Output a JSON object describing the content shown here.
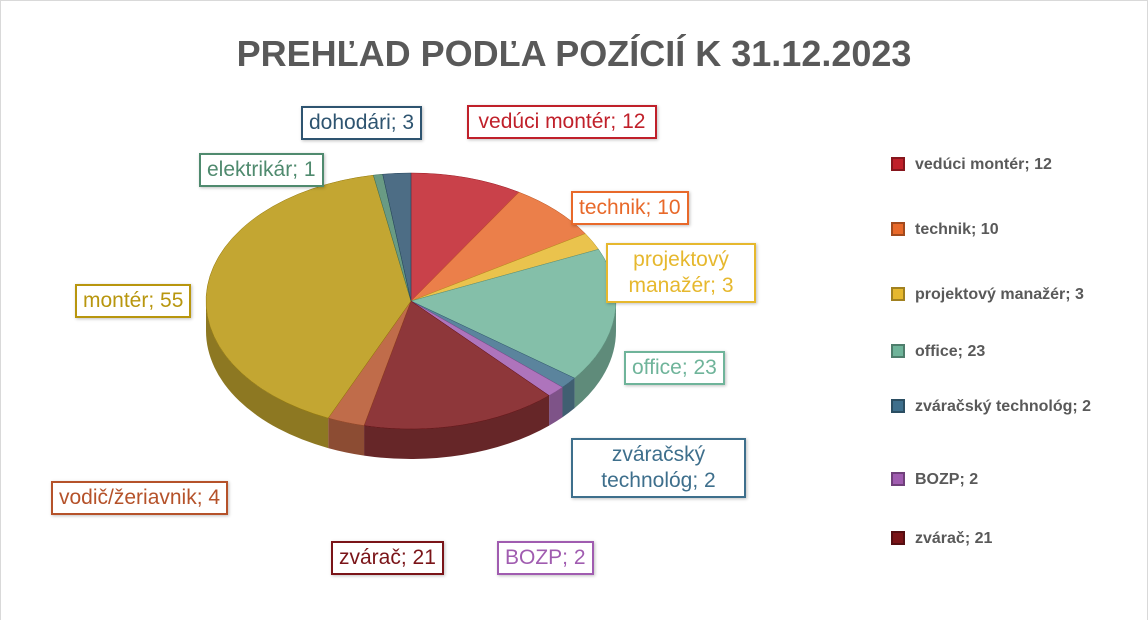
{
  "chart_data": {
    "type": "pie",
    "title": "PREHĽAD PODĽA POZÍCIÍ K 31.12.2023",
    "categories": [
      "vedúci montér; 12",
      "technik; 10",
      "projektový manažér; 3",
      "office; 23",
      "zváračský technológ; 2",
      "BOZP; 2",
      "zvárač; 21",
      "vodič/žeriavnik; 4",
      "montér; 55",
      "elektrikár; 1",
      "dohodári; 3"
    ],
    "values": [
      12,
      10,
      3,
      23,
      2,
      2,
      21,
      4,
      55,
      1,
      3
    ],
    "colors": [
      "#c0202a",
      "#e8692a",
      "#e6b82e",
      "#6fb49a",
      "#3e6f8c",
      "#a05cb0",
      "#7a1418",
      "#b5522a",
      "#b8960e",
      "#4f8a6e",
      "#2e5470"
    ],
    "legend": "right"
  }
}
